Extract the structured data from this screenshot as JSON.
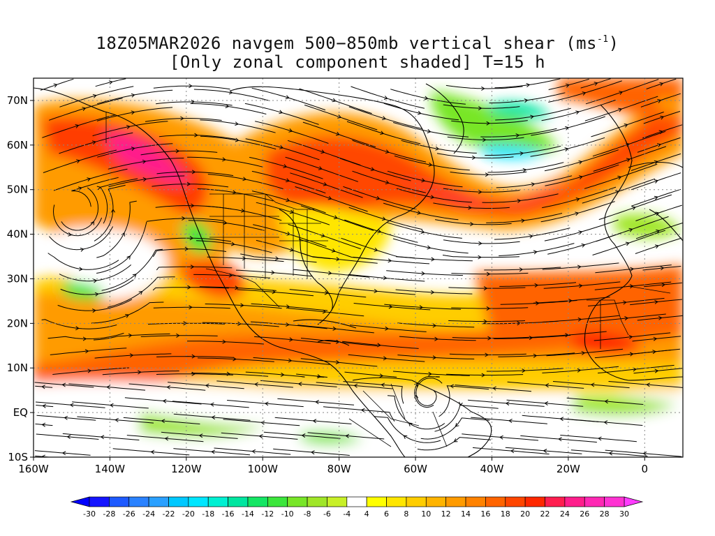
{
  "title": {
    "line1_prefix": "18Z05MAR2026 navgem 500−850mb vertical shear (ms",
    "line1_sup": "-1",
    "line1_suffix": ")",
    "line2": "[Only zonal component shaded] T=15 h"
  },
  "map": {
    "lon_range": [
      -160,
      10
    ],
    "lat_range": [
      -10,
      75
    ],
    "lat_labels": [
      "70N",
      "60N",
      "50N",
      "40N",
      "30N",
      "20N",
      "10N",
      "EQ",
      "10S"
    ],
    "lat_values": [
      70,
      60,
      50,
      40,
      30,
      20,
      10,
      0,
      -10
    ],
    "lon_labels": [
      "160W",
      "140W",
      "120W",
      "100W",
      "80W",
      "60W",
      "40W",
      "20W",
      "0"
    ],
    "lon_values": [
      -160,
      -140,
      -120,
      -100,
      -80,
      -60,
      -40,
      -20,
      0
    ],
    "gridlines": "dotted",
    "features": [
      "coastlines",
      "country-borders",
      "us-state-borders",
      "streamlines"
    ]
  },
  "shear_field": {
    "description_levels": "zonal component of vertical shear, shaded",
    "jet_bands": [
      {
        "name": "north-pacific-jet",
        "peak_ms": 26
      },
      {
        "name": "subtropical-pacific-atlantic-jet",
        "peak_ms": 20
      },
      {
        "name": "north-atlantic-jet",
        "peak_ms": 22
      }
    ]
  },
  "colorbar": {
    "levels": [
      "-30",
      "-28",
      "-26",
      "-24",
      "-22",
      "-20",
      "-18",
      "-16",
      "-14",
      "-12",
      "-10",
      "-8",
      "-6",
      "-4",
      "4",
      "6",
      "8",
      "10",
      "12",
      "14",
      "16",
      "18",
      "20",
      "22",
      "24",
      "26",
      "28",
      "30"
    ],
    "colors": [
      "#1414ff",
      "#1e5aff",
      "#2a82ff",
      "#2aa0ff",
      "#00c8ff",
      "#00e6ff",
      "#00f0d2",
      "#00e6a0",
      "#14e664",
      "#3ce63c",
      "#78e628",
      "#a0e628",
      "#c8f028",
      "#ffffff",
      "#ffff00",
      "#ffe600",
      "#ffcd00",
      "#ffb400",
      "#ff9b00",
      "#ff8200",
      "#ff6400",
      "#ff4600",
      "#ff2800",
      "#ff1e50",
      "#ff1e8c",
      "#ff28b4",
      "#ff32d2"
    ],
    "left_arrow_color": "#0000ff",
    "right_arrow_color": "#ff3cff"
  }
}
